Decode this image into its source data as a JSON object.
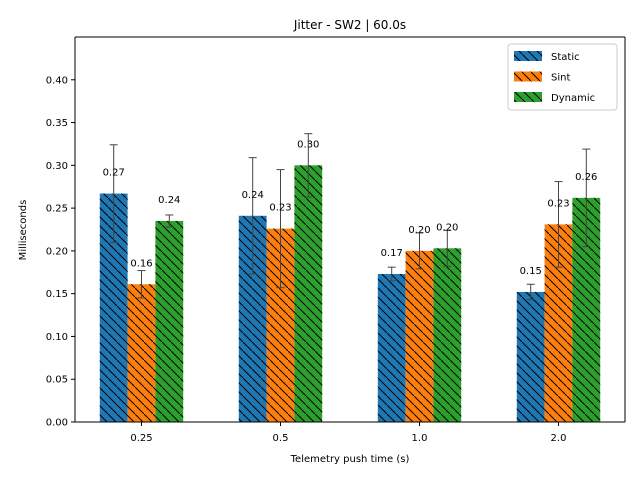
{
  "chart_data": {
    "type": "bar",
    "title": "Jitter - SW2 | 60.0s",
    "xlabel": "Telemetry push time (s)",
    "ylabel": "Milliseconds",
    "categories": [
      "0.25",
      "0.5",
      "1.0",
      "2.0"
    ],
    "ylim": [
      0,
      0.45
    ],
    "yticks": [
      "0.00",
      "0.05",
      "0.10",
      "0.15",
      "0.20",
      "0.25",
      "0.30",
      "0.35",
      "0.40"
    ],
    "grid": false,
    "legend_position": "top-right",
    "hatch": "diagonal",
    "series": [
      {
        "name": "Static",
        "color": "#1f77b4",
        "values": [
          0.267,
          0.241,
          0.173,
          0.152
        ],
        "errors": [
          0.057,
          0.068,
          0.008,
          0.009
        ],
        "labels": [
          "0.27",
          "0.24",
          "0.17",
          "0.15"
        ]
      },
      {
        "name": "Sint",
        "color": "#ff7f0e",
        "values": [
          0.161,
          0.226,
          0.2,
          0.231
        ],
        "errors": [
          0.016,
          0.069,
          0.021,
          0.05
        ],
        "labels": [
          "0.16",
          "0.23",
          "0.20",
          "0.23"
        ]
      },
      {
        "name": "Dynamic",
        "color": "#2ca02c",
        "values": [
          0.235,
          0.3,
          0.203,
          0.262
        ],
        "errors": [
          0.007,
          0.037,
          0.021,
          0.057
        ],
        "labels": [
          "0.24",
          "0.30",
          "0.20",
          "0.26"
        ]
      }
    ]
  }
}
